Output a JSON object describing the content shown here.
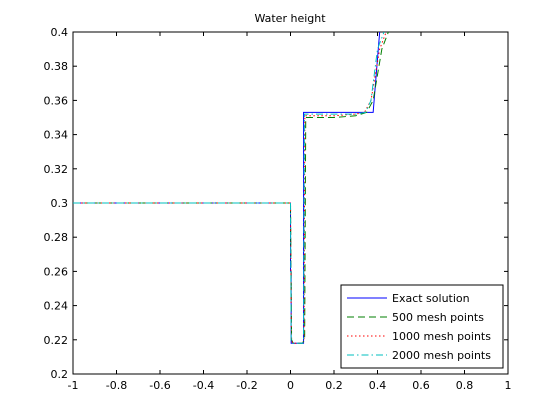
{
  "chart_data": {
    "type": "line",
    "title": "Water height",
    "xlabel": "",
    "ylabel": "",
    "xlim": [
      -1,
      1
    ],
    "ylim": [
      0.2,
      0.4
    ],
    "grid": false,
    "legend_position": "bottom-right",
    "x_ticks": [
      "-1",
      "-0.8",
      "-0.6",
      "-0.4",
      "-0.2",
      "0",
      "0.2",
      "0.4",
      "0.6",
      "0.8",
      "1"
    ],
    "y_ticks": [
      "0.2",
      "0.22",
      "0.24",
      "0.26",
      "0.28",
      "0.3",
      "0.32",
      "0.34",
      "0.36",
      "0.38",
      "0.4"
    ],
    "series": [
      {
        "name": "Exact solution",
        "color": "#0000ff",
        "dash": "solid",
        "x": [
          -1,
          0,
          0,
          0.003,
          0.003,
          0.06,
          0.06,
          0.38,
          0.41,
          0.42,
          0.46
        ],
        "y": [
          0.3,
          0.3,
          0.26,
          0.26,
          0.218,
          0.218,
          0.353,
          0.353,
          0.4,
          0.41,
          0.42
        ]
      },
      {
        "name": "500 mesh points",
        "color": "#007f00",
        "dash": "dashed",
        "x": [
          -1,
          0.0,
          0.005,
          0.012,
          0.055,
          0.065,
          0.07,
          0.1,
          0.2,
          0.3,
          0.35,
          0.38,
          0.42,
          0.45
        ],
        "y": [
          0.3,
          0.3,
          0.22,
          0.218,
          0.218,
          0.22,
          0.35,
          0.35,
          0.35,
          0.351,
          0.353,
          0.36,
          0.39,
          0.4
        ]
      },
      {
        "name": "1000 mesh points",
        "color": "#ff0000",
        "dash": "dotted",
        "x": [
          -1,
          0.0,
          0.004,
          0.01,
          0.055,
          0.062,
          0.066,
          0.1,
          0.2,
          0.3,
          0.34,
          0.37,
          0.41,
          0.44
        ],
        "y": [
          0.3,
          0.3,
          0.22,
          0.218,
          0.218,
          0.22,
          0.351,
          0.351,
          0.351,
          0.352,
          0.353,
          0.36,
          0.39,
          0.4
        ]
      },
      {
        "name": "2000 mesh points",
        "color": "#00bfbf",
        "dash": "dashdot",
        "x": [
          -1,
          0.0,
          0.003,
          0.008,
          0.055,
          0.06,
          0.064,
          0.1,
          0.2,
          0.3,
          0.345,
          0.37,
          0.4,
          0.43
        ],
        "y": [
          0.3,
          0.3,
          0.22,
          0.218,
          0.218,
          0.22,
          0.352,
          0.352,
          0.352,
          0.352,
          0.353,
          0.36,
          0.39,
          0.4
        ]
      }
    ]
  }
}
